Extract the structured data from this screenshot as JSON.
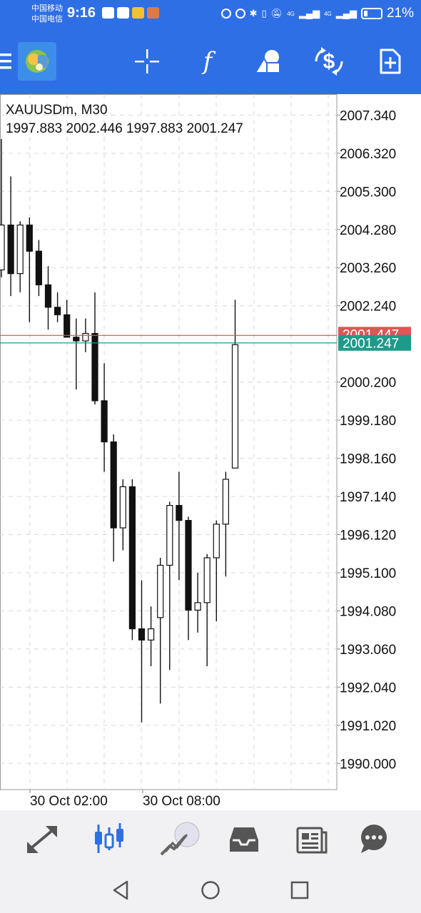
{
  "status_bar": {
    "carrier1": "中国移动",
    "carrier2": "中国电信",
    "time": "9:16",
    "signal_label_1": "4G",
    "signal_label_2": "4G",
    "battery": "21%"
  },
  "toolbar": {
    "icons": [
      "menu-icon",
      "app-logo",
      "crosshair-icon",
      "indicators-icon",
      "objects-icon",
      "trade-icon",
      "new-order-icon"
    ]
  },
  "chart": {
    "symbol": "XAUUSDm, M30",
    "ohlc": "1997.883 2002.446 1997.883 2001.247",
    "price_labels": [
      "2007.340",
      "2006.320",
      "2005.300",
      "2004.280",
      "2003.260",
      "2002.240",
      "2000.200",
      "1999.180",
      "1998.160",
      "1997.140",
      "1996.120",
      "1995.100",
      "1994.080",
      "1993.060",
      "1992.040",
      "1991.020",
      "1990.000"
    ],
    "ask_label": "2001.447",
    "bid_label": "2001.247",
    "time_labels": [
      "30 Oct 02:00",
      "30 Oct 08:00"
    ],
    "colors": {
      "ask": "#e05555",
      "bid": "#1f9a8a",
      "bull": "#ffffff",
      "bear": "#111111",
      "grid": "#d8d8d8"
    }
  },
  "chart_data": {
    "type": "candlestick",
    "title": "XAUUSDm, M30",
    "ylim": [
      1989.3,
      2007.9
    ],
    "ohlc_header": [
      1997.883,
      2002.446,
      1997.883,
      2001.247
    ],
    "candles": [
      {
        "o": 2003.2,
        "h": 2006.7,
        "l": 2003.0,
        "c": 2004.4
      },
      {
        "o": 2004.4,
        "h": 2005.7,
        "l": 2002.5,
        "c": 2003.1
      },
      {
        "o": 2003.1,
        "h": 2004.5,
        "l": 2002.6,
        "c": 2004.4
      },
      {
        "o": 2004.4,
        "h": 2004.6,
        "l": 2001.8,
        "c": 2003.7
      },
      {
        "o": 2003.7,
        "h": 2004.0,
        "l": 2002.5,
        "c": 2002.8
      },
      {
        "o": 2002.8,
        "h": 2003.3,
        "l": 2001.6,
        "c": 2002.2
      },
      {
        "o": 2002.2,
        "h": 2002.6,
        "l": 2001.8,
        "c": 2002.0
      },
      {
        "o": 2002.0,
        "h": 2002.4,
        "l": 2001.4,
        "c": 2001.4
      },
      {
        "o": 2001.4,
        "h": 2001.9,
        "l": 2000.0,
        "c": 2001.3
      },
      {
        "o": 2001.3,
        "h": 2001.9,
        "l": 2001.0,
        "c": 2001.5
      },
      {
        "o": 2001.5,
        "h": 2002.6,
        "l": 1999.6,
        "c": 1999.7
      },
      {
        "o": 1999.7,
        "h": 2000.7,
        "l": 1997.8,
        "c": 1998.6
      },
      {
        "o": 1998.6,
        "h": 1998.8,
        "l": 1995.4,
        "c": 1996.3
      },
      {
        "o": 1996.3,
        "h": 1997.6,
        "l": 1995.7,
        "c": 1997.4
      },
      {
        "o": 1997.4,
        "h": 1997.6,
        "l": 1993.3,
        "c": 1993.6
      },
      {
        "o": 1993.6,
        "h": 1994.9,
        "l": 1991.1,
        "c": 1993.3
      },
      {
        "o": 1993.3,
        "h": 1994.2,
        "l": 1992.6,
        "c": 1993.6
      },
      {
        "o": 1993.9,
        "h": 1995.5,
        "l": 1991.6,
        "c": 1995.3
      },
      {
        "o": 1995.3,
        "h": 1997.0,
        "l": 1992.5,
        "c": 1996.9
      },
      {
        "o": 1996.9,
        "h": 1997.8,
        "l": 1994.9,
        "c": 1996.5
      },
      {
        "o": 1996.5,
        "h": 1996.6,
        "l": 1993.3,
        "c": 1994.1
      },
      {
        "o": 1994.1,
        "h": 1995.1,
        "l": 1993.5,
        "c": 1994.3
      },
      {
        "o": 1994.3,
        "h": 1995.6,
        "l": 1992.6,
        "c": 1995.5
      },
      {
        "o": 1995.5,
        "h": 1996.5,
        "l": 1993.8,
        "c": 1996.4
      },
      {
        "o": 1996.4,
        "h": 1997.8,
        "l": 1995.0,
        "c": 1997.6
      },
      {
        "o": 1997.9,
        "h": 2002.4,
        "l": 1997.9,
        "c": 2001.2
      }
    ]
  },
  "bottom_nav": {
    "items": [
      "quotes-icon",
      "chart-icon",
      "trade-icon",
      "history-icon",
      "news-icon",
      "messages-icon"
    ],
    "active": "chart-icon"
  },
  "system_nav": {
    "items": [
      "back-icon",
      "home-icon",
      "recents-icon"
    ]
  }
}
